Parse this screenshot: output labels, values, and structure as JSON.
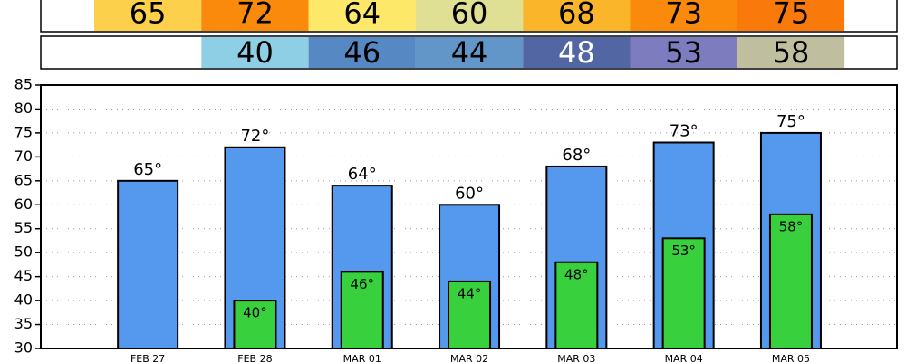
{
  "chart_data": {
    "type": "bar",
    "categories": [
      "FEB 27",
      "FEB 28",
      "MAR 01",
      "MAR 02",
      "MAR 03",
      "MAR 04",
      "MAR 05"
    ],
    "series": [
      {
        "color": "#5599ee",
        "values": [
          65,
          72,
          64,
          60,
          68,
          73,
          75
        ],
        "value_labels": [
          "65°",
          "72°",
          "64°",
          "60°",
          "68°",
          "73°",
          "75°"
        ],
        "cell_colors": [
          "#fcd04a",
          "#f98a0c",
          "#fde869",
          "#dfe093",
          "#fbb52a",
          "#f98a0c",
          "#f97a0a"
        ]
      },
      {
        "color": "#38d03c",
        "values": [
          null,
          40,
          46,
          44,
          48,
          53,
          58
        ],
        "value_labels": [
          null,
          "40°",
          "46°",
          "44°",
          "48°",
          "53°",
          "58°"
        ],
        "cell_colors": [
          null,
          "#8ecfe6",
          "#5689c4",
          "#6296c9",
          "#5266a4",
          "#7c7cbf",
          "#bfbf9f"
        ]
      }
    ],
    "ylim": [
      30,
      85
    ],
    "yticks": [
      30,
      35,
      40,
      45,
      50,
      55,
      60,
      65,
      70,
      75,
      80,
      85
    ],
    "grid": true
  }
}
